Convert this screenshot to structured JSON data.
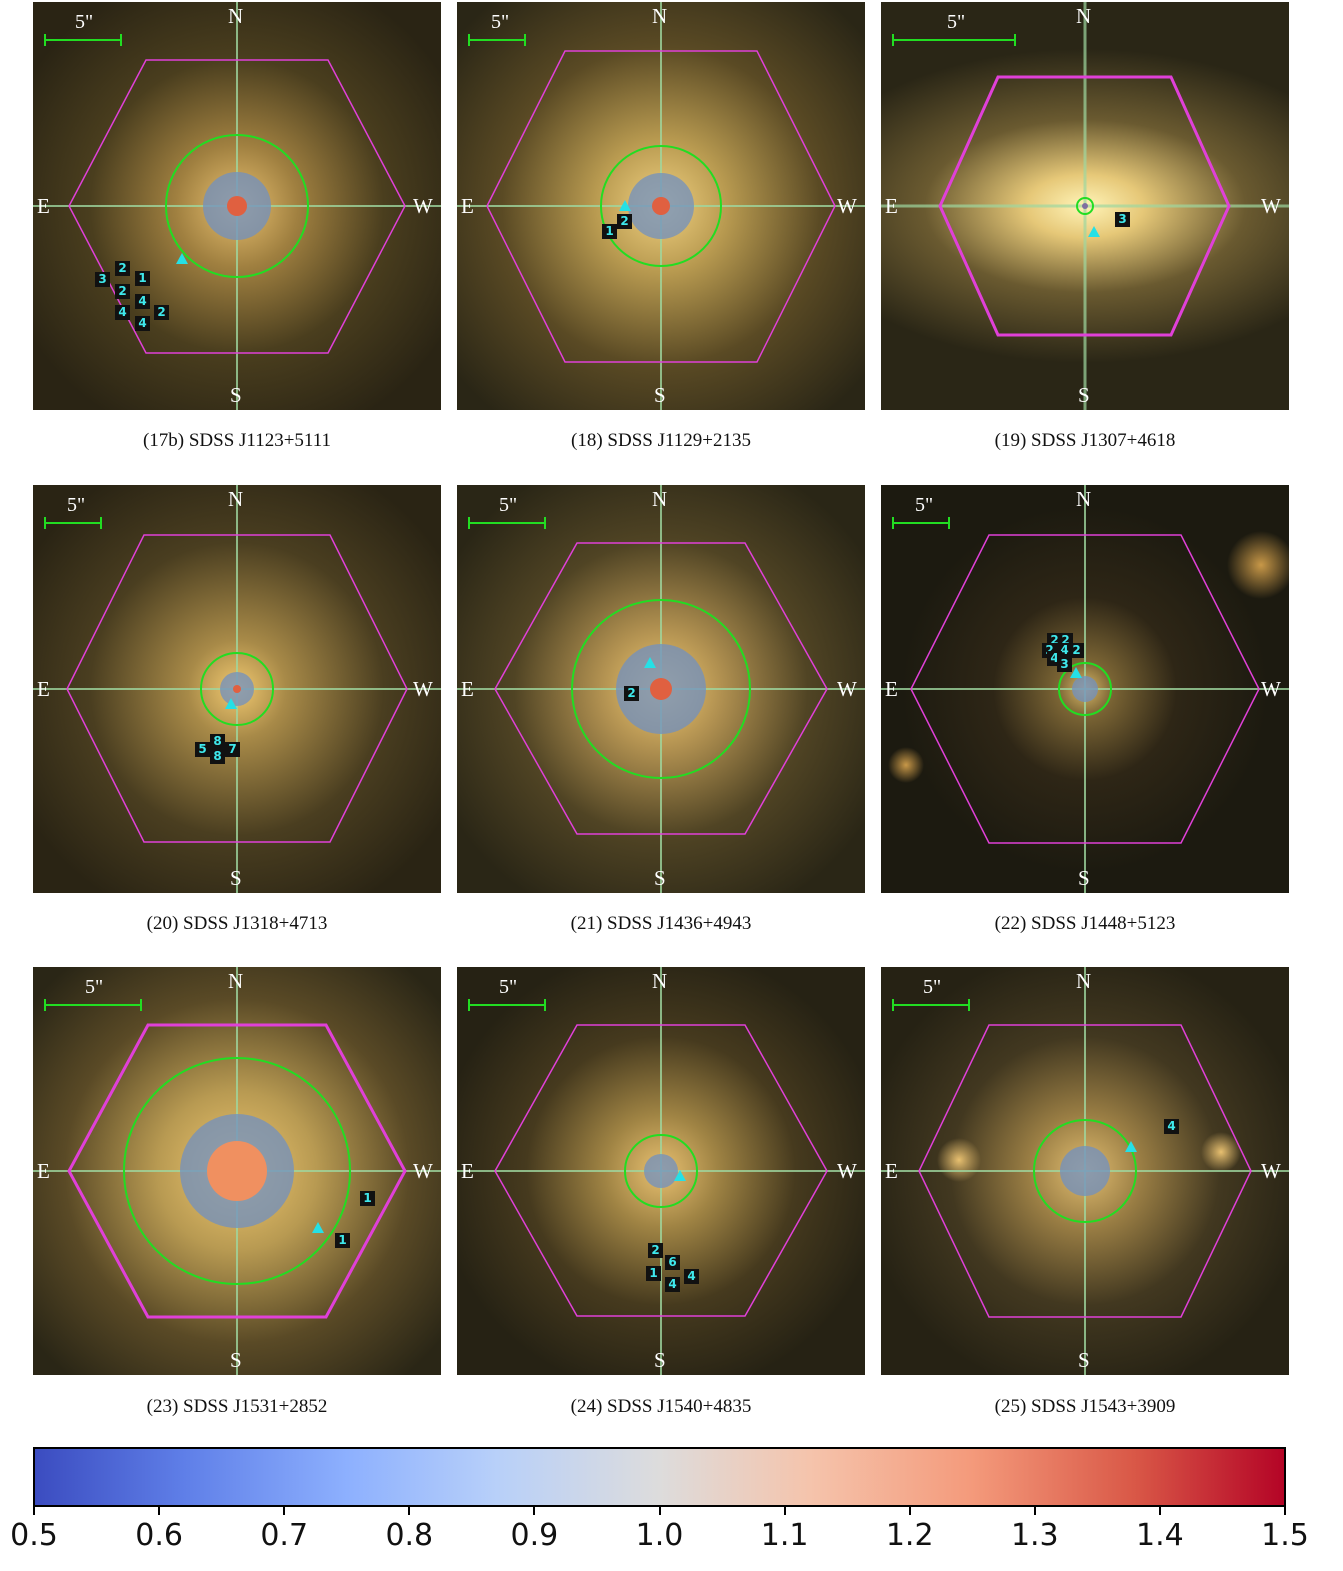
{
  "directions": {
    "north": "N",
    "south": "S",
    "east": "E",
    "west": "W"
  },
  "scale_label": "5\"",
  "panels": [
    {
      "caption": "(17b) SDSS J1123+5111",
      "labels": [
        "3",
        "2",
        "1",
        "2",
        "4",
        "4",
        "2",
        "4"
      ]
    },
    {
      "caption": "(18) SDSS J1129+2135",
      "labels": [
        "2",
        "1"
      ]
    },
    {
      "caption": "(19) SDSS J1307+4618",
      "labels": [
        "3"
      ]
    },
    {
      "caption": "(20) SDSS J1318+4713",
      "labels": [
        "5",
        "8",
        "8",
        "7"
      ]
    },
    {
      "caption": "(21) SDSS J1436+4943",
      "labels": [
        "2"
      ]
    },
    {
      "caption": "(22) SDSS J1448+5123",
      "labels": [
        "2",
        "2",
        "2",
        "4",
        "2",
        "4",
        "3"
      ]
    },
    {
      "caption": "(23) SDSS J1531+2852",
      "labels": [
        "1",
        "1"
      ]
    },
    {
      "caption": "(24) SDSS J1540+4835",
      "labels": [
        "2",
        "6",
        "1",
        "4",
        "4"
      ]
    },
    {
      "caption": "(25) SDSS J1543+3909",
      "labels": [
        "4"
      ]
    }
  ],
  "colorbar": {
    "ticks": [
      "0.5",
      "0.6",
      "0.7",
      "0.8",
      "0.9",
      "1.0",
      "1.1",
      "1.2",
      "1.3",
      "1.4",
      "1.5"
    ],
    "range": [
      0.5,
      1.5
    ],
    "colormap": "coolwarm"
  },
  "colors": {
    "hexagon": "#e040d8",
    "circle": "#22dd22",
    "crosshair": "#9fd8a0",
    "scalebar": "#22dd22",
    "marker_text": "#3fe8ec",
    "triangle": "#25e0e6"
  }
}
